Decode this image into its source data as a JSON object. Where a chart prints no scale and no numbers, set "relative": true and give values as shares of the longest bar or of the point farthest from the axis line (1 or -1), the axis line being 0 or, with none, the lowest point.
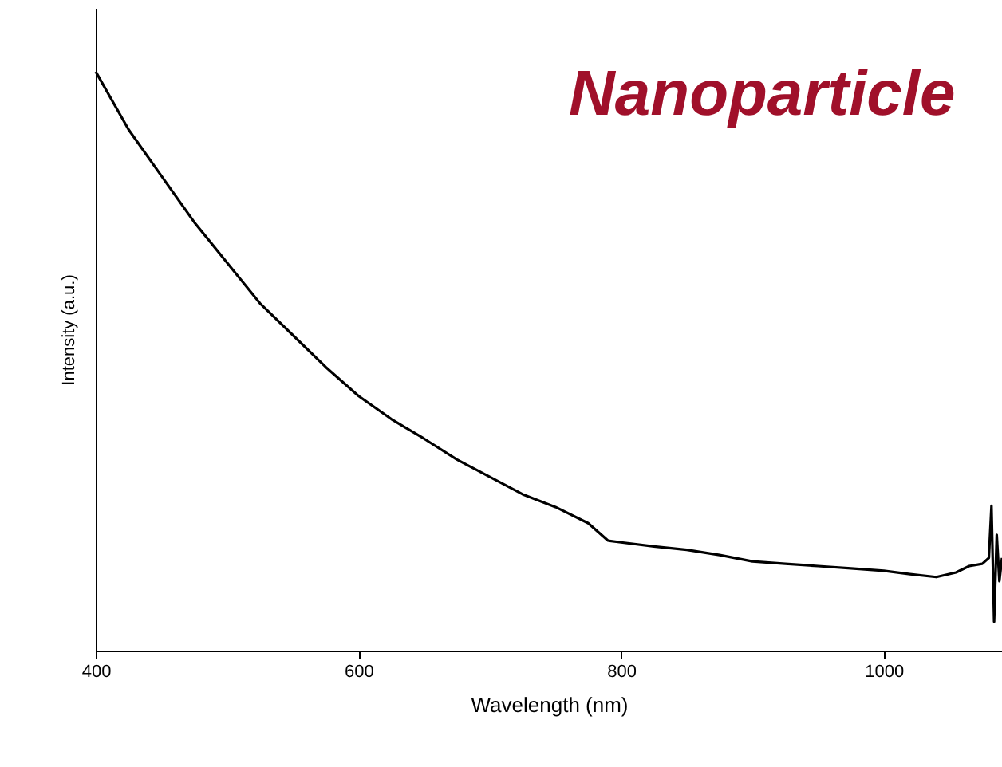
{
  "chart_data": {
    "type": "line",
    "title": "Nanoparticle",
    "xlabel": "Wavelength (nm)",
    "ylabel": "Intensity (a.u.)",
    "relative": true,
    "xlim": [
      400,
      1090
    ],
    "xticks": [
      400,
      600,
      800,
      1000
    ],
    "grid": false,
    "marker": "none",
    "line_style": "solid",
    "series": [
      {
        "color": "#000000",
        "x": [
          400,
          425,
          450,
          475,
          500,
          525,
          550,
          575,
          600,
          625,
          650,
          675,
          700,
          725,
          750,
          775,
          790,
          800,
          825,
          850,
          875,
          900,
          925,
          950,
          975,
          1000,
          1020,
          1040,
          1055,
          1065,
          1075,
          1080,
          1082,
          1084,
          1086,
          1088,
          1090
        ],
        "values": [
          1.0,
          0.9,
          0.82,
          0.74,
          0.67,
          0.6,
          0.545,
          0.49,
          0.44,
          0.4,
          0.366,
          0.33,
          0.3,
          0.27,
          0.248,
          0.22,
          0.19,
          0.187,
          0.18,
          0.174,
          0.165,
          0.154,
          0.15,
          0.146,
          0.142,
          0.138,
          0.132,
          0.127,
          0.135,
          0.146,
          0.15,
          0.16,
          0.25,
          0.05,
          0.2,
          0.12,
          0.16
        ]
      }
    ]
  }
}
